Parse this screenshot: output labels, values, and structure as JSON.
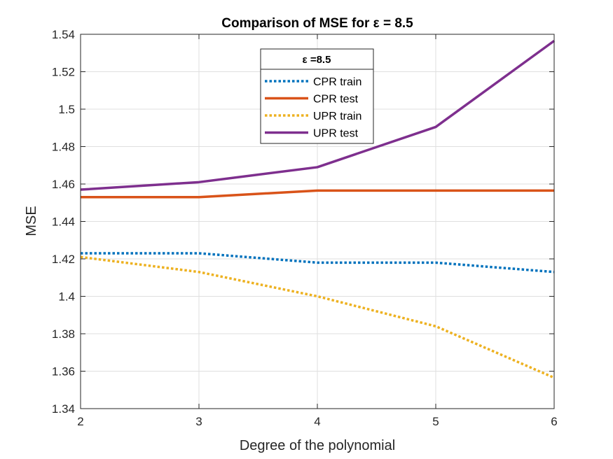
{
  "chart_data": {
    "type": "line",
    "title": "Comparison of MSE for ε = 8.5",
    "xlabel": "Degree of the polynomial",
    "ylabel": "MSE",
    "x": [
      2,
      3,
      4,
      5,
      6
    ],
    "xlim": [
      2,
      6
    ],
    "ylim": [
      1.34,
      1.54
    ],
    "xticks": [
      "2",
      "3",
      "4",
      "5",
      "6"
    ],
    "yticks": [
      "1.34",
      "1.36",
      "1.38",
      "1.4",
      "1.42",
      "1.44",
      "1.46",
      "1.48",
      "1.5",
      "1.52",
      "1.54"
    ],
    "grid": true,
    "legend": {
      "title": "ε =8.5",
      "position": "top-center"
    },
    "series": [
      {
        "name": "CPR train",
        "color": "#0072BD",
        "style": "dotted",
        "values": [
          1.423,
          1.423,
          1.418,
          1.418,
          1.413
        ]
      },
      {
        "name": "CPR test",
        "color": "#D95319",
        "style": "solid",
        "values": [
          1.453,
          1.453,
          1.4565,
          1.4565,
          1.4565
        ]
      },
      {
        "name": "UPR train",
        "color": "#EDB120",
        "style": "dotted",
        "values": [
          1.421,
          1.413,
          1.4,
          1.384,
          1.3565
        ]
      },
      {
        "name": "UPR test",
        "color": "#7E2F8E",
        "style": "solid",
        "values": [
          1.457,
          1.461,
          1.469,
          1.4905,
          1.5365
        ]
      }
    ]
  }
}
